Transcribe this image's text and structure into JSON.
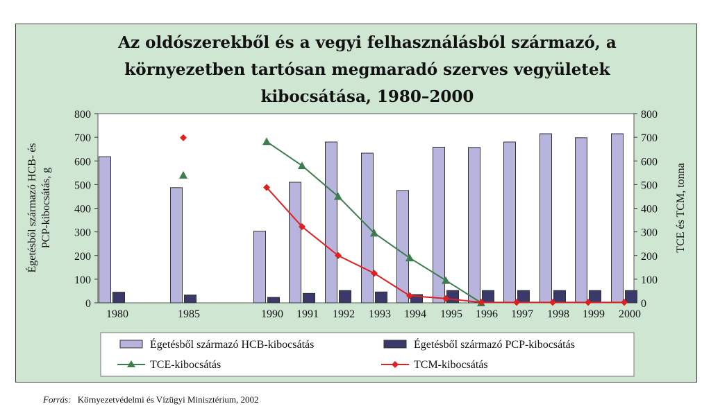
{
  "chart_data": {
    "type": "bar",
    "title_lines": [
      "Az oldószerekből és a vegyi felhasználásból származó, a",
      "környezetben tartósan megmaradó szerves vegyületek",
      "kibocsátása, 1980–2000"
    ],
    "categories": [
      "1980",
      "1985",
      "1990",
      "1991",
      "1992",
      "1993",
      "1994",
      "1995",
      "1996",
      "1997",
      "1998",
      "1999",
      "2000"
    ],
    "ylabel_left_lines": [
      "Égetésből származó HCB- és",
      "PCP-kibocsátás, g"
    ],
    "ylabel_right": "TCE és TCM, tonna",
    "ylim_left": [
      0,
      800
    ],
    "ylim_right": [
      0,
      800
    ],
    "yticks": [
      0,
      100,
      200,
      300,
      400,
      500,
      600,
      700,
      800
    ],
    "grid": false,
    "legend_position": "bottom",
    "series": [
      {
        "name": "Égetésből származó HCB-kibocsátás",
        "kind": "bar",
        "axis": "left",
        "color": "#b7b4dd",
        "values": [
          618,
          487,
          303,
          510,
          680,
          633,
          475,
          658,
          657,
          680,
          715,
          698,
          715
        ]
      },
      {
        "name": "Égetésből származó PCP-kibocsátás",
        "kind": "bar",
        "axis": "left",
        "color": "#3a3a6a",
        "values": [
          45,
          33,
          23,
          40,
          52,
          46,
          35,
          52,
          52,
          52,
          52,
          52,
          52
        ]
      },
      {
        "name": "TCE-kibocsátás",
        "kind": "line",
        "axis": "right",
        "color": "#3d7d4f",
        "values": [
          null,
          540,
          682,
          580,
          450,
          295,
          190,
          95,
          0,
          null,
          null,
          null,
          null
        ]
      },
      {
        "name": "TCM-kibocsátás",
        "kind": "line",
        "axis": "right",
        "color": "#e02020",
        "values": [
          null,
          698,
          488,
          322,
          200,
          125,
          30,
          18,
          2,
          2,
          2,
          2,
          2
        ]
      }
    ]
  },
  "source": {
    "label": "Forrás:",
    "text": "Környezetvédelmi és Vízügyi Minisztérium, 2002"
  }
}
